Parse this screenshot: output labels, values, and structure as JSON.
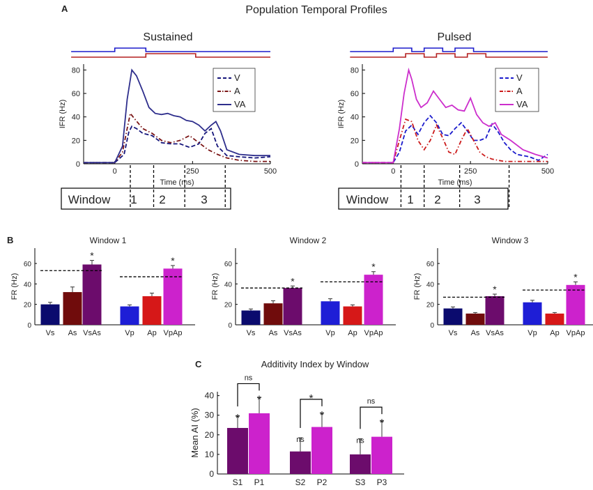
{
  "figure": {
    "panel_a": {
      "letter": "A",
      "title": "Population Temporal Profiles",
      "stim_colors": {
        "visual": "#1a1acc",
        "auditory": "#b41e1e"
      },
      "window_labels": [
        "Window",
        "1",
        "2",
        "3"
      ],
      "plots": [
        {
          "title": "Sustained",
          "legend": [
            "V",
            "A",
            "VA"
          ]
        },
        {
          "title": "Pulsed",
          "legend": [
            "V",
            "A",
            "VA"
          ]
        }
      ]
    },
    "panel_b": {
      "letter": "B",
      "plots": [
        {
          "title": "Window 1"
        },
        {
          "title": "Window 2"
        },
        {
          "title": "Window 3"
        }
      ]
    },
    "panel_c": {
      "letter": "C",
      "title": "Additivity Index by Window"
    }
  },
  "chart_data": [
    {
      "id": "sustained",
      "type": "line",
      "title": "Sustained",
      "xlabel": "Time (ms)",
      "ylabel": "IFR (Hz)",
      "xlim": [
        -100,
        500
      ],
      "ylim": [
        0,
        85
      ],
      "xticks": [
        0,
        250,
        500
      ],
      "yticks": [
        0,
        20,
        40,
        60,
        80
      ],
      "window_boundaries": [
        50,
        125,
        225,
        355
      ],
      "series": [
        {
          "name": "V",
          "color": "#14147a",
          "dash": "dashed",
          "x": [
            -100,
            0,
            30,
            45,
            55,
            70,
            90,
            120,
            150,
            180,
            210,
            240,
            270,
            290,
            310,
            330,
            360,
            400,
            450,
            500
          ],
          "y": [
            1,
            1,
            8,
            27,
            32,
            30,
            26,
            24,
            18,
            17,
            17,
            14,
            17,
            26,
            30,
            15,
            7,
            6,
            5,
            6
          ]
        },
        {
          "name": "A",
          "color": "#7a1414",
          "dash": "dashdot",
          "x": [
            -100,
            0,
            25,
            40,
            50,
            65,
            90,
            120,
            150,
            180,
            210,
            240,
            270,
            300,
            330,
            360,
            400,
            450,
            500
          ],
          "y": [
            1,
            1,
            10,
            30,
            43,
            38,
            30,
            26,
            20,
            18,
            20,
            24,
            18,
            12,
            8,
            5,
            3,
            2,
            2
          ]
        },
        {
          "name": "VA",
          "color": "#2e2e8c",
          "dash": "solid",
          "x": [
            -100,
            0,
            25,
            40,
            55,
            70,
            90,
            110,
            130,
            150,
            170,
            190,
            210,
            230,
            250,
            270,
            290,
            310,
            325,
            340,
            360,
            400,
            450,
            500
          ],
          "y": [
            1,
            1,
            15,
            55,
            80,
            75,
            62,
            48,
            43,
            42,
            43,
            41,
            40,
            37,
            36,
            33,
            28,
            33,
            36,
            28,
            12,
            8,
            7,
            7
          ]
        }
      ]
    },
    {
      "id": "pulsed",
      "type": "line",
      "title": "Pulsed",
      "xlabel": "Time (ms)",
      "ylabel": "IFR (Hz)",
      "xlim": [
        -100,
        500
      ],
      "ylim": [
        0,
        85
      ],
      "xticks": [
        0,
        250,
        500
      ],
      "yticks": [
        0,
        20,
        40,
        60,
        80
      ],
      "window_boundaries": [
        25,
        100,
        215,
        375
      ],
      "series": [
        {
          "name": "V",
          "color": "#1a1acc",
          "dash": "dashed",
          "x": [
            -100,
            0,
            20,
            40,
            60,
            80,
            100,
            120,
            140,
            160,
            180,
            200,
            220,
            240,
            260,
            280,
            300,
            320,
            340,
            360,
            380,
            400,
            440,
            470,
            500
          ],
          "y": [
            1,
            1,
            10,
            28,
            33,
            25,
            35,
            41,
            35,
            25,
            24,
            30,
            35,
            28,
            20,
            20,
            22,
            34,
            27,
            18,
            12,
            8,
            6,
            3,
            8
          ]
        },
        {
          "name": "A",
          "color": "#cc1a1a",
          "dash": "dashdot",
          "x": [
            -100,
            0,
            20,
            40,
            60,
            80,
            100,
            120,
            140,
            160,
            180,
            200,
            220,
            240,
            260,
            280,
            300,
            320,
            340,
            360,
            400,
            450,
            500
          ],
          "y": [
            1,
            1,
            20,
            38,
            36,
            20,
            12,
            20,
            33,
            22,
            10,
            8,
            20,
            30,
            20,
            10,
            6,
            4,
            3,
            2,
            2,
            2,
            2
          ]
        },
        {
          "name": "VA",
          "color": "#cc2ecc",
          "dash": "solid",
          "x": [
            -100,
            0,
            20,
            35,
            50,
            60,
            75,
            90,
            110,
            130,
            150,
            170,
            190,
            210,
            230,
            250,
            270,
            290,
            310,
            330,
            350,
            380,
            420,
            460,
            500
          ],
          "y": [
            1,
            1,
            30,
            60,
            80,
            72,
            55,
            48,
            52,
            62,
            55,
            48,
            50,
            46,
            45,
            56,
            42,
            35,
            32,
            35,
            25,
            20,
            12,
            8,
            5
          ]
        }
      ]
    },
    {
      "id": "window1",
      "type": "bar",
      "title": "Window 1",
      "ylabel": "FR (Hz)",
      "ylim": [
        0,
        75
      ],
      "yticks": [
        0,
        20,
        40,
        60
      ],
      "categories": [
        "Vs",
        "As",
        "VsAs",
        "Vp",
        "Ap",
        "VpAp"
      ],
      "values": [
        20,
        32,
        59,
        18,
        28,
        55
      ],
      "errors": [
        2,
        5,
        4,
        1.5,
        3,
        3
      ],
      "colors": [
        "#0b0b6e",
        "#700c0c",
        "#6c0c6c",
        "#1e1ed6",
        "#d61818",
        "#cc22cc"
      ],
      "significant": [
        false,
        false,
        true,
        false,
        false,
        true
      ],
      "sum_lines": [
        53,
        47
      ]
    },
    {
      "id": "window2",
      "type": "bar",
      "title": "Window 2",
      "ylabel": "FR (Hz)",
      "ylim": [
        0,
        75
      ],
      "yticks": [
        0,
        20,
        40,
        60
      ],
      "categories": [
        "Vs",
        "As",
        "VsAs",
        "Vp",
        "Ap",
        "VpAp"
      ],
      "values": [
        14,
        21,
        36,
        23,
        18,
        49
      ],
      "errors": [
        1.5,
        2.5,
        2,
        2.5,
        1.5,
        3
      ],
      "colors": [
        "#0b0b6e",
        "#700c0c",
        "#6c0c6c",
        "#1e1ed6",
        "#d61818",
        "#cc22cc"
      ],
      "significant": [
        false,
        false,
        true,
        false,
        false,
        true
      ],
      "sum_lines": [
        36,
        42
      ]
    },
    {
      "id": "window3",
      "type": "bar",
      "title": "Window 3",
      "ylabel": "FR (Hz)",
      "ylim": [
        0,
        75
      ],
      "yticks": [
        0,
        20,
        40,
        60
      ],
      "categories": [
        "Vs",
        "As",
        "VsAs",
        "Vp",
        "Ap",
        "VpAp"
      ],
      "values": [
        16,
        11,
        28,
        22,
        11,
        39
      ],
      "errors": [
        1.5,
        1,
        2,
        2,
        1,
        3
      ],
      "colors": [
        "#0b0b6e",
        "#700c0c",
        "#6c0c6c",
        "#1e1ed6",
        "#d61818",
        "#cc22cc"
      ],
      "significant": [
        false,
        false,
        true,
        false,
        false,
        true
      ],
      "sum_lines": [
        27,
        34
      ]
    },
    {
      "id": "additivity",
      "type": "bar",
      "title": "Additivity Index by Window",
      "ylabel": "Mean AI (%)",
      "ylim": [
        0,
        42
      ],
      "yticks": [
        0,
        10,
        20,
        30,
        40
      ],
      "categories": [
        "S1",
        "P1",
        "S2",
        "P2",
        "S3",
        "P3"
      ],
      "values": [
        23.5,
        31,
        11.5,
        24,
        10,
        19
      ],
      "errors": [
        6,
        8,
        7,
        7,
        8,
        8
      ],
      "colors": [
        "#6c0c6c",
        "#cc22cc",
        "#6c0c6c",
        "#cc22cc",
        "#6c0c6c",
        "#cc22cc"
      ],
      "bar_labels": [
        "*",
        "*",
        "ns",
        "*",
        "ns",
        "*"
      ],
      "comparisons": [
        {
          "pair": [
            0,
            1
          ],
          "label": "ns"
        },
        {
          "pair": [
            2,
            3
          ],
          "label": "*"
        },
        {
          "pair": [
            4,
            5
          ],
          "label": "ns"
        }
      ]
    }
  ]
}
